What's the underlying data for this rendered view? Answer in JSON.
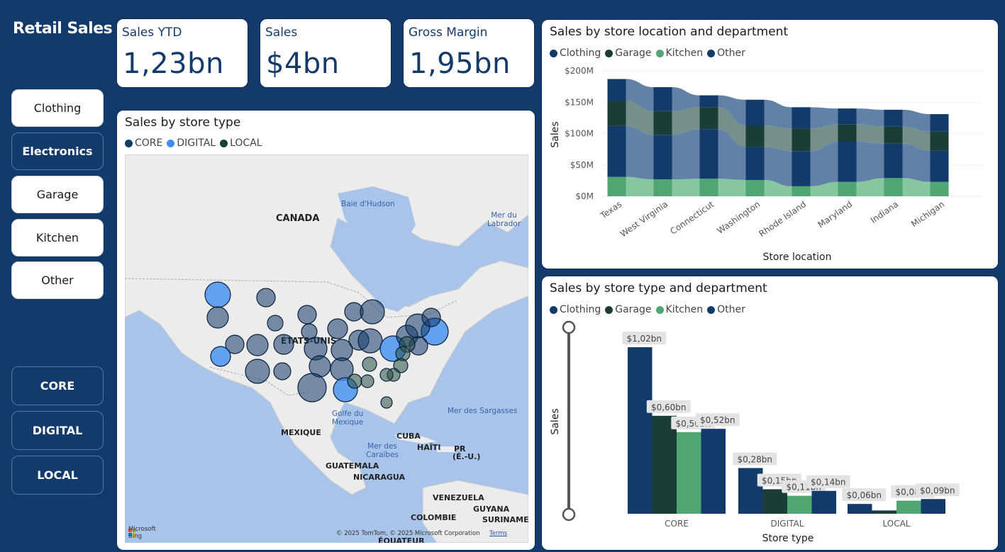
{
  "app": {
    "title": "Retail Sales"
  },
  "department_slicer": [
    "Clothing",
    "Electronics",
    "Garage",
    "Kitchen",
    "Other"
  ],
  "store_type_slicer": [
    "CORE",
    "DIGITAL",
    "LOCAL"
  ],
  "kpis": [
    {
      "title": "Sales YTD",
      "value": "1,23bn"
    },
    {
      "title": "Sales",
      "value": "$4bn"
    },
    {
      "title": "Gross Margin",
      "value": "1,95bn"
    }
  ],
  "map_panel": {
    "title": "Sales by store type",
    "legend": [
      {
        "label": "CORE",
        "color": "#123a6b"
      },
      {
        "label": "DIGITAL",
        "color": "#3f8ef0"
      },
      {
        "label": "LOCAL",
        "color": "#1b3d38"
      }
    ],
    "labels": {
      "canada": "CANADA",
      "usa": "ÉTATS-UNIS",
      "mexico": "MEXIQUE",
      "cuba": "CUBA",
      "haiti": "HAÏTI",
      "pr": "PR",
      "pr_sub": "(É.-U.)",
      "guatemala": "GUATEMALA",
      "nicaragua": "NICARAGUA",
      "venezuela": "VENEZUELA",
      "guyana": "GUYANA",
      "colombia": "COLOMBIE",
      "suriname": "SURINAME",
      "ecuador": "ÉQUATEUR"
    },
    "water_labels": {
      "hudson": "Baie d'Hudson",
      "labrador": "Mer du Labrador",
      "gulf1": "Golfe du",
      "gulf2": "Mexique",
      "caribbean1": "Mer des",
      "caribbean2": "Caraïbes",
      "sargasso": "Mer des Sargasses"
    },
    "bing": "Microsoft Bing",
    "attribution": "© 2025 TomTom, © 2025 Microsoft Corporation",
    "terms": "Terms"
  },
  "chart_data": [
    {
      "type": "area",
      "title": "Sales by store location and department",
      "xlabel": "Store location",
      "ylabel": "Sales",
      "ylim": [
        0,
        200
      ],
      "yticks": [
        "$0M",
        "$50M",
        "$100M",
        "$150M",
        "$200M"
      ],
      "categories": [
        "Texas",
        "West Virginia",
        "Connecticut",
        "Washington",
        "Rhode Island",
        "Maryland",
        "Indiana",
        "Michigan"
      ],
      "series": [
        {
          "name": "Clothing",
          "color": "#123a6b",
          "values": [
            81,
            71,
            79,
            53,
            56,
            64,
            55,
            50
          ]
        },
        {
          "name": "Garage",
          "color": "#1b3d38",
          "values": [
            40,
            38,
            35,
            34,
            36,
            28,
            27,
            30
          ]
        },
        {
          "name": "Kitchen",
          "color": "#4fa672",
          "values": [
            31,
            27,
            28,
            26,
            16,
            23,
            29,
            23
          ]
        },
        {
          "name": "Other",
          "color": "#123a6b",
          "values": [
            35,
            38,
            19,
            41,
            34,
            25,
            27,
            28
          ]
        }
      ],
      "legend_position": "top-left",
      "grid": true
    },
    {
      "type": "bar",
      "title": "Sales by store type and department",
      "xlabel": "Store type",
      "ylabel": "Sales",
      "categories": [
        "CORE",
        "DIGITAL",
        "LOCAL"
      ],
      "series": [
        {
          "name": "Clothing",
          "color": "#123a6b",
          "values": [
            1.02,
            0.28,
            0.06
          ],
          "labels": [
            "$1,02bn",
            "$0,28bn",
            "$0,06bn"
          ]
        },
        {
          "name": "Garage",
          "color": "#1b3d38",
          "values": [
            0.6,
            0.15,
            0.02
          ],
          "labels": [
            "$0,60bn",
            "$0,15bn",
            ""
          ]
        },
        {
          "name": "Kitchen",
          "color": "#4fa672",
          "values": [
            0.5,
            0.11,
            0.08
          ],
          "labels": [
            "$0,50bn",
            "$0,11bn",
            "$0,08bn"
          ]
        },
        {
          "name": "Other",
          "color": "#123a6b",
          "values": [
            0.52,
            0.14,
            0.09
          ],
          "labels": [
            "$0,52bn",
            "$0,14bn",
            "$0,09bn"
          ]
        }
      ],
      "legend_position": "top-left",
      "grid": false
    }
  ]
}
